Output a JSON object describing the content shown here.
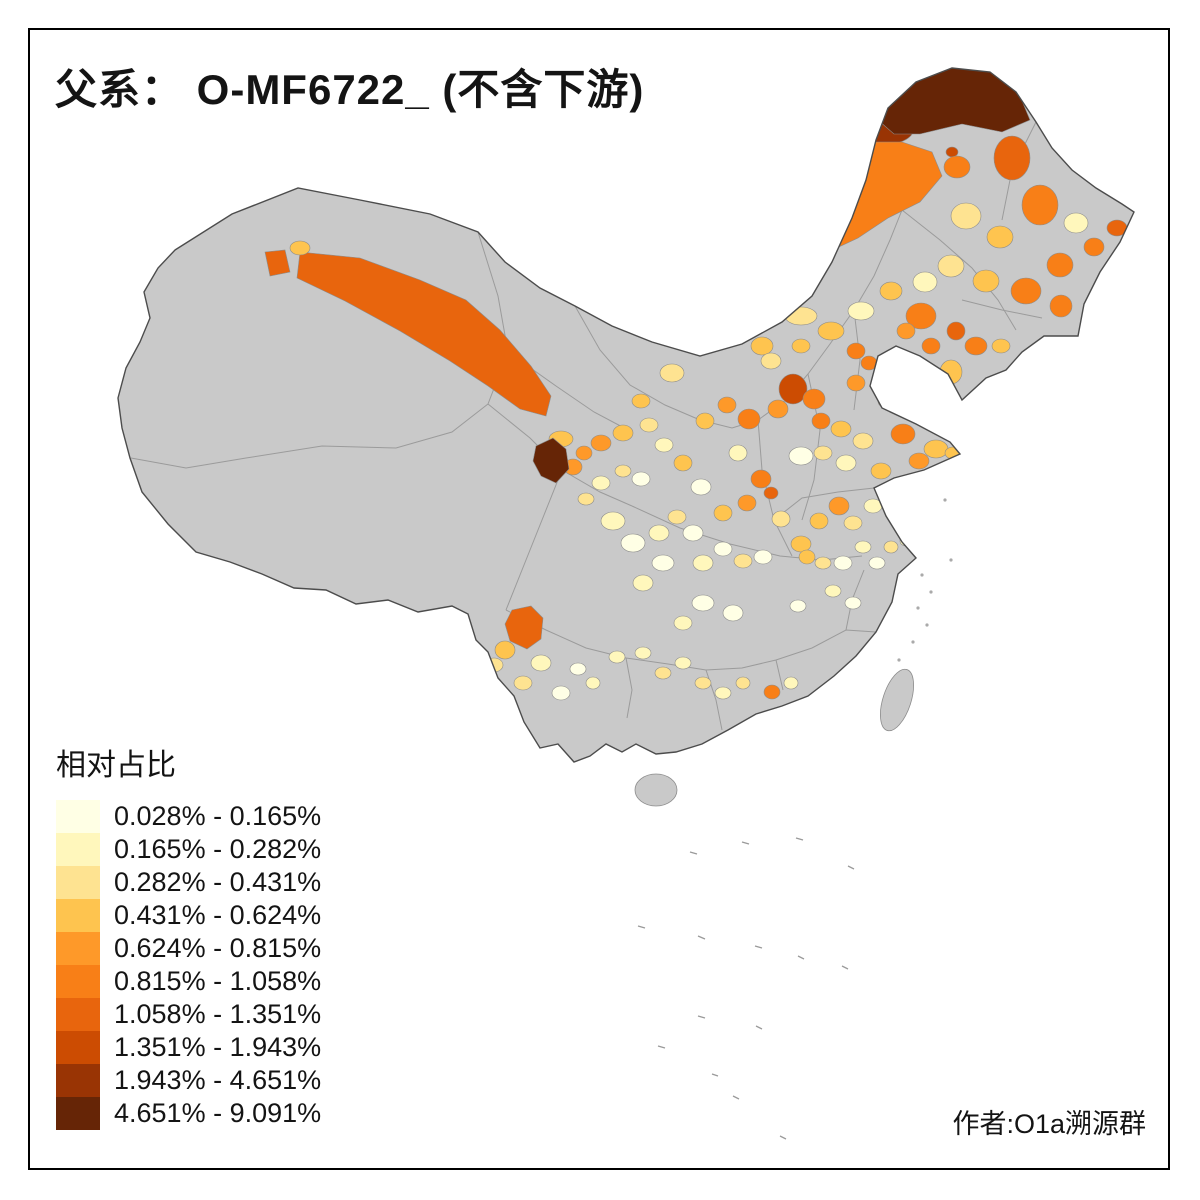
{
  "title": "父系： O-MF6722_ (不含下游)",
  "legend": {
    "title": "相对占比",
    "classes": [
      {
        "range": "0.028% - 0.165%",
        "color": "#FFFFE5"
      },
      {
        "range": "0.165% - 0.282%",
        "color": "#FFF7BC"
      },
      {
        "range": "0.282% - 0.431%",
        "color": "#FEE391"
      },
      {
        "range": "0.431% - 0.624%",
        "color": "#FEC44F"
      },
      {
        "range": "0.624% - 0.815%",
        "color": "#FE9929"
      },
      {
        "range": "0.815% - 1.058%",
        "color": "#F87F17"
      },
      {
        "range": "1.058% - 1.351%",
        "color": "#E8650D"
      },
      {
        "range": "1.351% - 1.943%",
        "color": "#CC4C02"
      },
      {
        "range": "1.943% - 4.651%",
        "color": "#993404"
      },
      {
        "range": "4.651% - 9.091%",
        "color": "#662506"
      }
    ]
  },
  "credit": "作者:O1a溯源群",
  "map": {
    "subject": "china-prefecture-choropleth",
    "no_data_color": "#C9C9C9",
    "outline_color": "#4C4C4C",
    "ocean_color": "#FFFFFF"
  }
}
